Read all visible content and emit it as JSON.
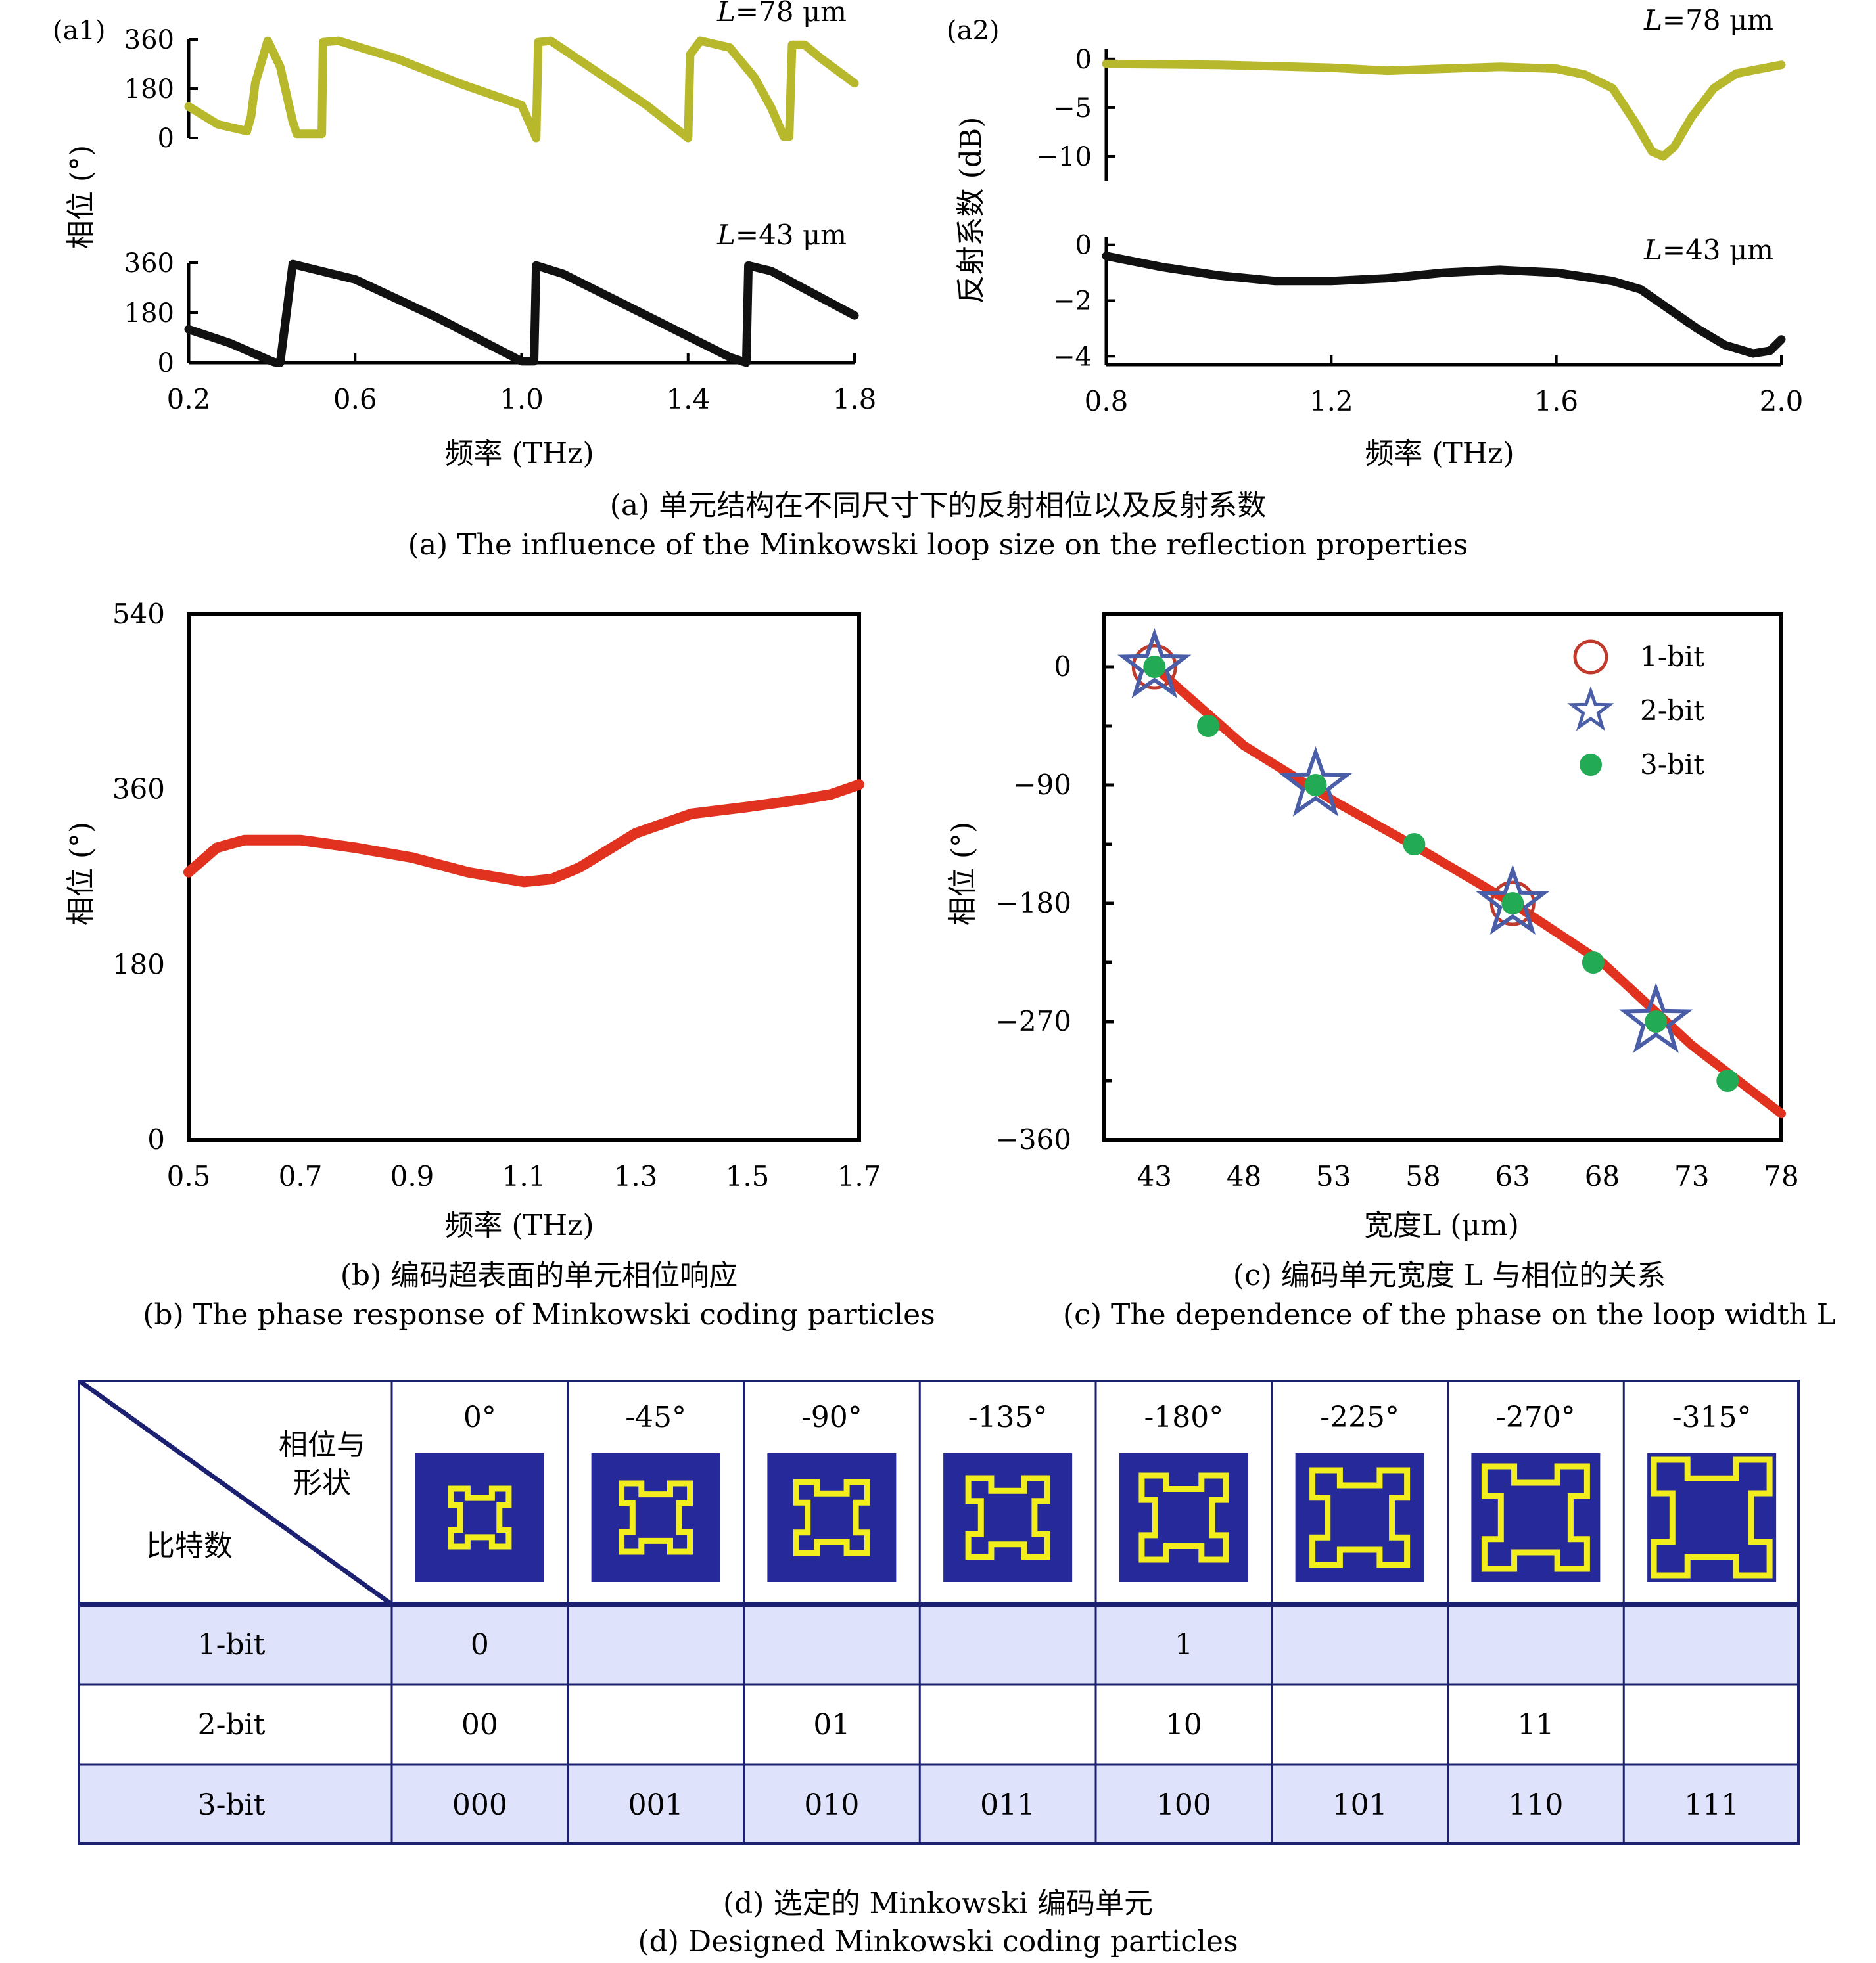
{
  "colors": {
    "olive": "#b8b82c",
    "black": "#111111",
    "red": "#e0321e",
    "ring": "#c0392b",
    "star": "#4a5ea8",
    "dot": "#22aa55",
    "navy": "#26299a",
    "yellow": "#f2ee1e",
    "rowShade": "#dfe2fb",
    "border": "#1c2070"
  },
  "panel_a": {
    "a1_tag": "(a1)",
    "a2_tag": "(a2)",
    "a1_ylabel": "相位 (°)",
    "a2_ylabel": "反射系数 (dB)",
    "xlabel": "频率 (THz)",
    "caption_cn": "(a) 单元结构在不同尺寸下的反射相位以及反射系数",
    "caption_en": "(a) The influence of the Minkowski loop size on the reflection properties"
  },
  "panel_b": {
    "caption_cn": "(b) 编码超表面的单元相位响应",
    "caption_en": "(b) The phase response of Minkowski coding particles"
  },
  "panel_c": {
    "caption_cn": "(c) 编码单元宽度 L 与相位的关系",
    "caption_en": "(c) The dependence of the phase on the loop width L"
  },
  "panel_d": {
    "caption_cn": "(d) 选定的 Minkowski 编码单元",
    "caption_en": "(d) Designed Minkowski coding particles",
    "header_top": "相位与",
    "header_mid": "形状",
    "header_bottom": "比特数",
    "phases": [
      "0°",
      "-45°",
      "-90°",
      "-135°",
      "-180°",
      "-225°",
      "-270°",
      "-315°"
    ],
    "rows": [
      {
        "label": "1-bit",
        "cells": [
          "0",
          "",
          "",
          "",
          "1",
          "",
          "",
          ""
        ]
      },
      {
        "label": "2-bit",
        "cells": [
          "00",
          "",
          "01",
          "",
          "10",
          "",
          "11",
          ""
        ]
      },
      {
        "label": "3-bit",
        "cells": [
          "000",
          "001",
          "010",
          "011",
          "100",
          "101",
          "110",
          "111"
        ]
      }
    ]
  },
  "chart_data": [
    {
      "id": "a1_top",
      "type": "line",
      "label": "L=78 μm",
      "xlim": [
        0.2,
        1.8
      ],
      "ylim": [
        0,
        360
      ],
      "yticks": [
        0,
        180,
        360
      ],
      "series": [
        {
          "name": "L=78 μm",
          "x": [
            0.2,
            0.27,
            0.34,
            0.35,
            0.36,
            0.39,
            0.42,
            0.45,
            0.46,
            0.52,
            0.523,
            0.56,
            0.7,
            0.85,
            1.0,
            1.035,
            1.04,
            1.07,
            1.3,
            1.4,
            1.405,
            1.43,
            1.5,
            1.56,
            1.6,
            1.63,
            1.643,
            1.65,
            1.68,
            1.72,
            1.8
          ],
          "y": [
            115,
            50,
            25,
            80,
            200,
            355,
            260,
            60,
            15,
            15,
            350,
            355,
            290,
            200,
            120,
            0,
            350,
            355,
            120,
            0,
            305,
            355,
            330,
            220,
            110,
            5,
            5,
            340,
            340,
            290,
            200
          ]
        }
      ]
    },
    {
      "id": "a1_bottom",
      "type": "line",
      "label": "L=43 μm",
      "xlim": [
        0.2,
        1.8
      ],
      "ylim": [
        0,
        360
      ],
      "yticks": [
        0,
        180,
        360
      ],
      "series": [
        {
          "name": "L=43 μm",
          "x": [
            0.2,
            0.3,
            0.4,
            0.41,
            0.42,
            0.45,
            0.6,
            0.8,
            1.0,
            1.03,
            1.035,
            1.1,
            1.3,
            1.5,
            1.54,
            1.545,
            1.6,
            1.8
          ],
          "y": [
            120,
            70,
            5,
            0,
            0,
            355,
            300,
            160,
            5,
            5,
            350,
            320,
            170,
            20,
            0,
            350,
            330,
            170
          ]
        }
      ]
    },
    {
      "id": "a2_top",
      "type": "line",
      "label": "L=78 μm",
      "xlim": [
        0.8,
        2.0
      ],
      "ylim": [
        -12.5,
        1
      ],
      "yticks": [
        0,
        -5,
        -10
      ],
      "series": [
        {
          "name": "L=78 μm",
          "x": [
            0.8,
            1.0,
            1.2,
            1.3,
            1.4,
            1.5,
            1.6,
            1.65,
            1.7,
            1.74,
            1.77,
            1.79,
            1.81,
            1.84,
            1.88,
            1.92,
            2.0
          ],
          "y": [
            -0.5,
            -0.6,
            -0.9,
            -1.2,
            -1.0,
            -0.8,
            -1.0,
            -1.6,
            -3.0,
            -6.5,
            -9.5,
            -10.0,
            -9.0,
            -6.0,
            -3.0,
            -1.5,
            -0.6
          ]
        }
      ]
    },
    {
      "id": "a2_bottom",
      "type": "line",
      "label": "L=43 μm",
      "xlim": [
        0.8,
        2.0
      ],
      "ylim": [
        -4.3,
        0.3
      ],
      "yticks": [
        0,
        -2,
        -4
      ],
      "series": [
        {
          "name": "L=43 μm",
          "x": [
            0.8,
            0.9,
            1.0,
            1.1,
            1.2,
            1.3,
            1.4,
            1.5,
            1.6,
            1.7,
            1.75,
            1.8,
            1.85,
            1.9,
            1.95,
            1.98,
            2.0
          ],
          "y": [
            -0.4,
            -0.8,
            -1.1,
            -1.3,
            -1.3,
            -1.2,
            -1.0,
            -0.9,
            -1.0,
            -1.3,
            -1.6,
            -2.3,
            -3.0,
            -3.6,
            -3.9,
            -3.8,
            -3.4
          ]
        }
      ]
    },
    {
      "id": "b",
      "type": "line",
      "xlabel": "频率 (THz)",
      "ylabel": "相位 (°)",
      "xlim": [
        0.5,
        1.7
      ],
      "ylim": [
        0,
        540
      ],
      "xticks": [
        0.5,
        0.7,
        0.9,
        1.1,
        1.3,
        1.5,
        1.7
      ],
      "yticks": [
        0,
        180,
        360,
        540
      ],
      "series": [
        {
          "x": [
            0.5,
            0.55,
            0.6,
            0.7,
            0.8,
            0.9,
            1.0,
            1.1,
            1.15,
            1.2,
            1.3,
            1.4,
            1.5,
            1.6,
            1.65,
            1.7
          ],
          "y": [
            275,
            300,
            308,
            308,
            300,
            290,
            275,
            265,
            268,
            280,
            315,
            335,
            342,
            350,
            355,
            365
          ]
        }
      ]
    },
    {
      "id": "c",
      "type": "scatter",
      "xlabel": "宽度L (μm)",
      "ylabel": "相位 (°)",
      "xlim": [
        40.2,
        78
      ],
      "ylim": [
        -360,
        40
      ],
      "xticks": [
        43,
        48,
        53,
        58,
        63,
        68,
        73,
        78
      ],
      "yticks": [
        0,
        -90,
        -180,
        -270,
        -360
      ],
      "legend_position": "top-right",
      "series": [
        {
          "name": "fit",
          "x": [
            43,
            48,
            53,
            58,
            63,
            68,
            73,
            78
          ],
          "y": [
            0,
            -60,
            -102,
            -140,
            -180,
            -225,
            -288,
            -340
          ]
        },
        {
          "name": "1-bit",
          "x": [
            43,
            63
          ],
          "y": [
            0,
            -180
          ]
        },
        {
          "name": "2-bit",
          "x": [
            43,
            52,
            63,
            71
          ],
          "y": [
            0,
            -90,
            -180,
            -270
          ]
        },
        {
          "name": "3-bit",
          "x": [
            43,
            46,
            52,
            57.5,
            63,
            67.5,
            71,
            75
          ],
          "y": [
            0,
            -45,
            -90,
            -135,
            -180,
            -225,
            -270,
            -315
          ]
        }
      ]
    }
  ]
}
